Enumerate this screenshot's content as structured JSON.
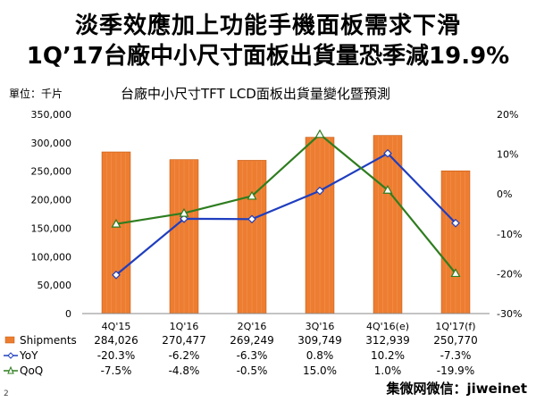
{
  "title_line1": "淡季效應加上功能手機面板需求下滑",
  "title_line2": "1Q’17台廠中小尺寸面板出貨量恐季減19.9%",
  "unit_label": "單位：千片",
  "page_number": "2",
  "watermark": "集微网微信：jiweinet",
  "chart_data": {
    "type": "bar",
    "title": "台廠中小尺寸TFT LCD面板出貨量變化暨預測",
    "categories": [
      "4Q'15",
      "1Q'16",
      "2Q'16",
      "3Q'16",
      "4Q'16(e)",
      "1Q'17(f)"
    ],
    "y_left": {
      "min": 0,
      "max": 350000,
      "step": 50000,
      "ticks": [
        "0",
        "50,000",
        "100,000",
        "150,000",
        "200,000",
        "250,000",
        "300,000",
        "350,000"
      ]
    },
    "y_right": {
      "min": -30,
      "max": 20,
      "step": 10,
      "ticks": [
        "-30%",
        "-20%",
        "-10%",
        "0%",
        "10%",
        "20%"
      ]
    },
    "grid": false,
    "series": [
      {
        "name": "Shipments",
        "type": "bar",
        "axis": "left",
        "color": "#ED7D31",
        "values": [
          284026,
          270477,
          269249,
          309749,
          312939,
          250770
        ],
        "labels": [
          "284,026",
          "270,477",
          "269,249",
          "309,749",
          "312,939",
          "250,770"
        ]
      },
      {
        "name": "YoY",
        "type": "line",
        "axis": "right",
        "color": "#1F3EBF",
        "values": [
          -20.3,
          -6.2,
          -6.3,
          0.8,
          10.2,
          -7.3
        ],
        "labels": [
          "-20.3%",
          "-6.2%",
          "-6.3%",
          "0.8%",
          "10.2%",
          "-7.3%"
        ]
      },
      {
        "name": "QoQ",
        "type": "line",
        "axis": "right",
        "color": "#2E7D1F",
        "values": [
          -7.5,
          -4.8,
          -0.5,
          15.0,
          1.0,
          -19.9
        ],
        "labels": [
          "-7.5%",
          "-4.8%",
          "-0.5%",
          "15.0%",
          "1.0%",
          "-19.9%"
        ]
      }
    ]
  }
}
